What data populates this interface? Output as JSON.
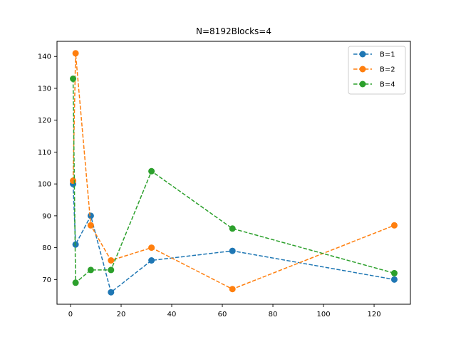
{
  "chart_data": {
    "type": "line",
    "title": "N=8192Blocks=4",
    "xlabel": "",
    "ylabel": "",
    "xlim": [
      -5.35,
      134.35
    ],
    "ylim": [
      62.25,
      144.75
    ],
    "xticks": [
      0,
      20,
      40,
      60,
      80,
      100,
      120
    ],
    "yticks": [
      70,
      80,
      90,
      100,
      110,
      120,
      130,
      140
    ],
    "grid": false,
    "legend_position": "top-right",
    "line_style": "dashed",
    "marker": "circle",
    "x": [
      1,
      2,
      8,
      16,
      32,
      64,
      128
    ],
    "series": [
      {
        "name": "B=1",
        "color": "#1f77b4",
        "values": [
          100,
          81,
          90,
          66,
          76,
          79,
          70
        ]
      },
      {
        "name": "B=2",
        "color": "#ff7f0e",
        "values": [
          101,
          141,
          87,
          76,
          80,
          67,
          87
        ]
      },
      {
        "name": "B=4",
        "color": "#2ca02c",
        "values": [
          133,
          69,
          73,
          73,
          104,
          86,
          72
        ]
      }
    ]
  }
}
